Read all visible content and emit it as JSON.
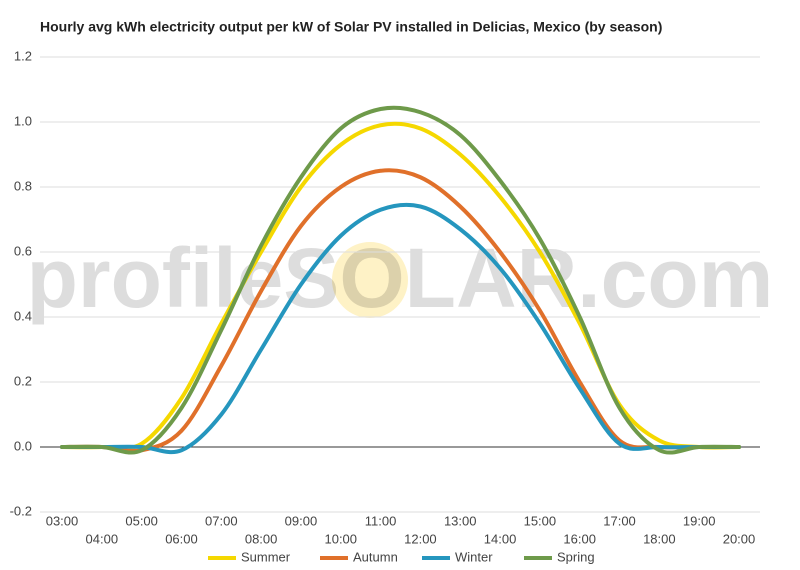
{
  "chart_data": {
    "type": "line",
    "title": "Hourly avg kWh electricity output per kW of Solar PV installed in Delicias, Mexico (by season)",
    "watermark": "profileSOLAR.com",
    "categories": [
      "03:00",
      "04:00",
      "05:00",
      "06:00",
      "07:00",
      "08:00",
      "09:00",
      "10:00",
      "11:00",
      "12:00",
      "13:00",
      "14:00",
      "15:00",
      "16:00",
      "17:00",
      "18:00",
      "19:00",
      "20:00"
    ],
    "series": [
      {
        "name": "Summer",
        "color": "#f5d800",
        "values": [
          0,
          0,
          0.01,
          0.15,
          0.38,
          0.6,
          0.8,
          0.93,
          0.99,
          0.98,
          0.9,
          0.77,
          0.6,
          0.38,
          0.13,
          0.02,
          0,
          0
        ]
      },
      {
        "name": "Autumn",
        "color": "#e0702a",
        "values": [
          0,
          0,
          -0.01,
          0.05,
          0.25,
          0.48,
          0.68,
          0.8,
          0.85,
          0.83,
          0.74,
          0.6,
          0.42,
          0.2,
          0.02,
          0,
          0,
          0
        ]
      },
      {
        "name": "Winter",
        "color": "#2596be",
        "values": [
          0,
          0,
          0,
          -0.01,
          0.1,
          0.3,
          0.5,
          0.65,
          0.73,
          0.74,
          0.67,
          0.55,
          0.38,
          0.18,
          0.01,
          0,
          0,
          0
        ]
      },
      {
        "name": "Spring",
        "color": "#6e9a4a",
        "values": [
          0,
          0,
          -0.01,
          0.12,
          0.36,
          0.62,
          0.83,
          0.98,
          1.04,
          1.03,
          0.96,
          0.82,
          0.64,
          0.4,
          0.12,
          -0.01,
          0,
          0
        ]
      }
    ],
    "ylim": [
      -0.2,
      1.2
    ],
    "yticks": [
      -0.2,
      {
        "value": 0,
        "label": "0.0"
      },
      0.2,
      0.4,
      0.6,
      0.8,
      {
        "value": 1,
        "label": "1.0"
      },
      1.2
    ],
    "grid": true,
    "legend": "bottom"
  }
}
